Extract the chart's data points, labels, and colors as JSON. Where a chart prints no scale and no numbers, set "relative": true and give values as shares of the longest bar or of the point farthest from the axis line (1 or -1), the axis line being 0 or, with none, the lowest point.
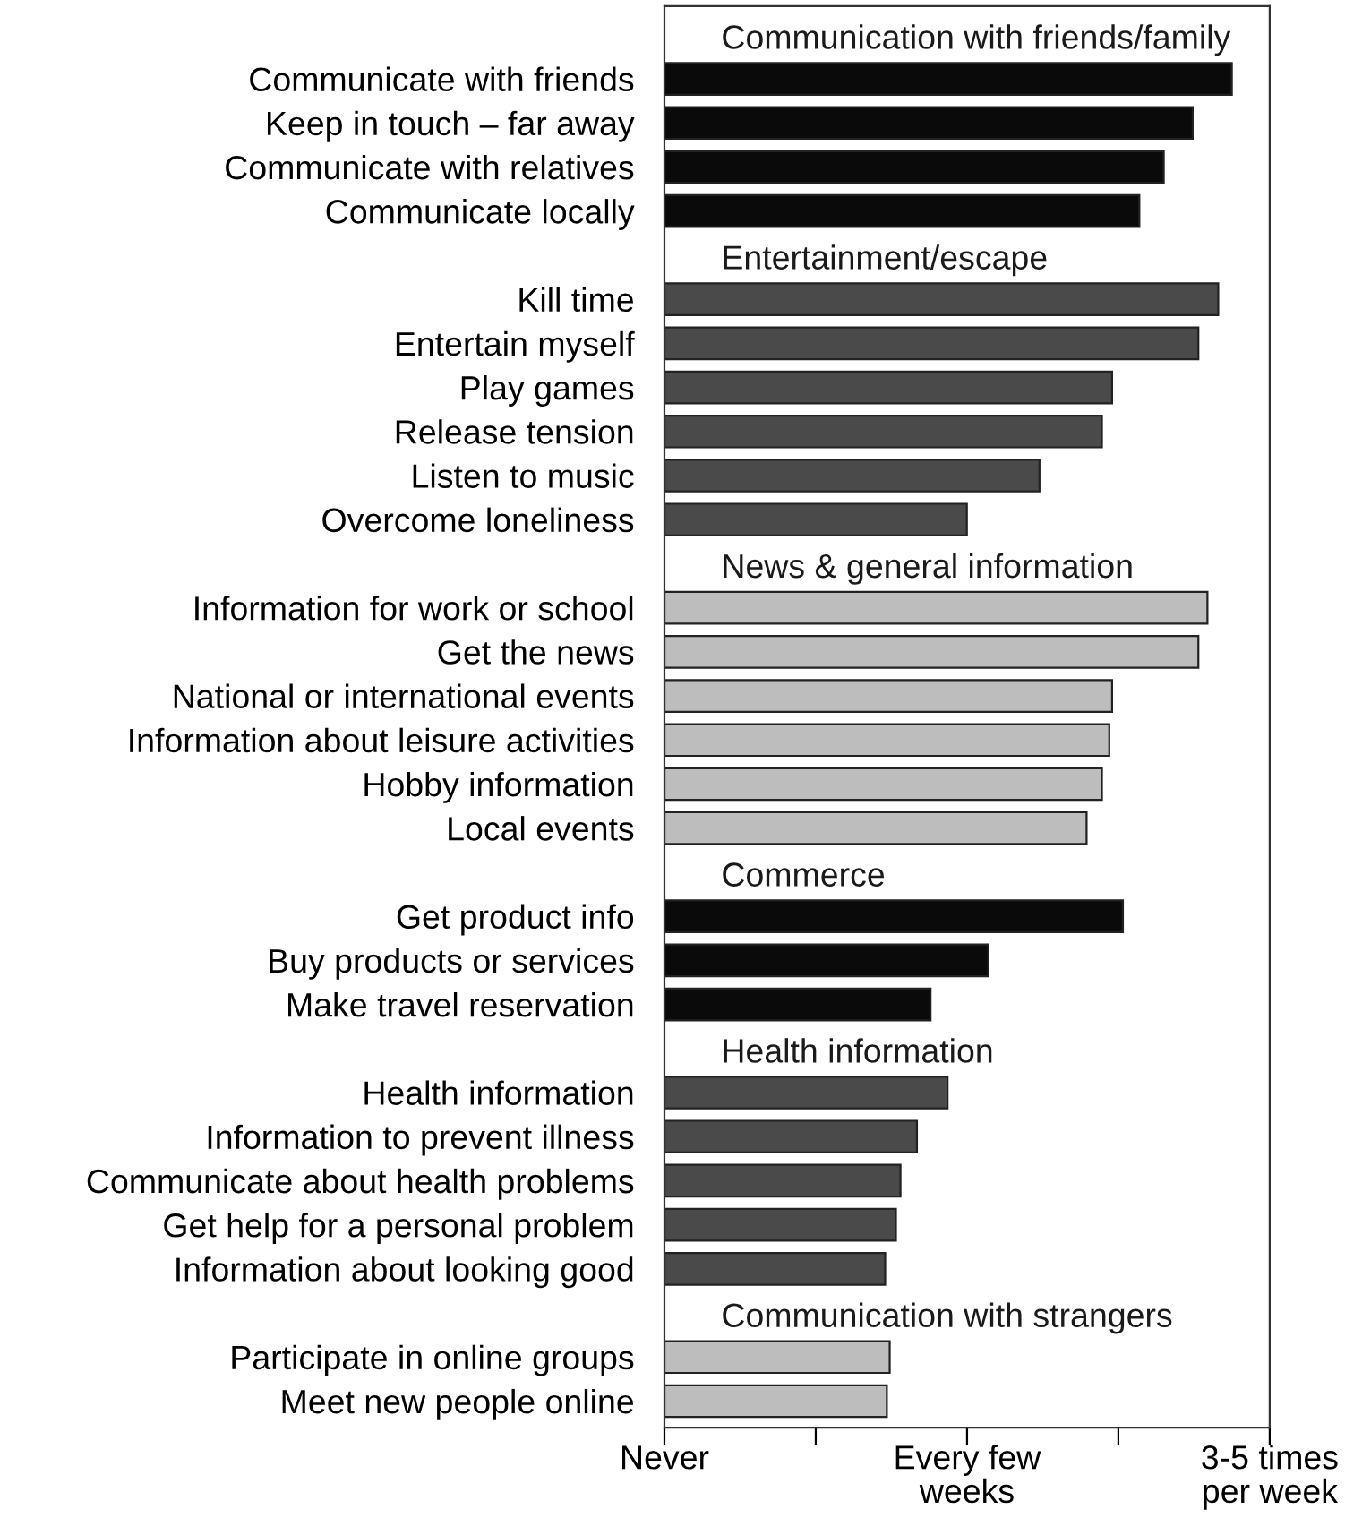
{
  "chart_data": {
    "type": "bar",
    "orientation": "horizontal",
    "categories": [
      "Communicate with friends",
      "Keep in touch – far away",
      "Communicate with relatives",
      "Communicate locally",
      "Kill time",
      "Entertain myself",
      "Play games",
      "Release tension",
      "Listen to music",
      "Overcome loneliness",
      "Information for work or school",
      "Get the news",
      "National or international events",
      "Information about leisure activities",
      "Hobby information",
      "Local events",
      "Get product info",
      "Buy products or services",
      "Make travel reservation",
      "Health information",
      "Information to prevent illness",
      "Communicate about health problems",
      "Get help for a personal problem",
      "Information about looking good",
      "Participate in online groups",
      "Meet new people online"
    ],
    "series": [
      {
        "name": "Communication with friends/family",
        "color": "#0a0a0a",
        "values": [
          1,
          0.931,
          0.88,
          0.837,
          null,
          null,
          null,
          null,
          null,
          null,
          null,
          null,
          null,
          null,
          null,
          null,
          null,
          null,
          null,
          null,
          null,
          null,
          null,
          null,
          null,
          null
        ]
      },
      {
        "name": "Entertainment/escape",
        "color": "#4a4a4a",
        "values": [
          null,
          null,
          null,
          null,
          0.976,
          0.941,
          0.789,
          0.771,
          0.661,
          0.533,
          null,
          null,
          null,
          null,
          null,
          null,
          null,
          null,
          null,
          null,
          null,
          null,
          null,
          null,
          null,
          null
        ]
      },
      {
        "name": "News & general information",
        "color": "#bdbdbd",
        "values": [
          null,
          null,
          null,
          null,
          null,
          null,
          null,
          null,
          null,
          null,
          0.957,
          0.941,
          0.789,
          0.784,
          0.771,
          0.744,
          null,
          null,
          null,
          null,
          null,
          null,
          null,
          null,
          null,
          null
        ]
      },
      {
        "name": "Commerce",
        "color": "#0a0a0a",
        "values": [
          null,
          null,
          null,
          null,
          null,
          null,
          null,
          null,
          null,
          null,
          null,
          null,
          null,
          null,
          null,
          null,
          0.808,
          0.571,
          0.469,
          null,
          null,
          null,
          null,
          null,
          null,
          null
        ]
      },
      {
        "name": "Health information",
        "color": "#4a4a4a",
        "values": [
          null,
          null,
          null,
          null,
          null,
          null,
          null,
          null,
          null,
          null,
          null,
          null,
          null,
          null,
          null,
          null,
          null,
          null,
          null,
          0.499,
          0.445,
          0.416,
          0.408,
          0.389,
          null,
          null
        ]
      },
      {
        "name": "Communication with strangers",
        "color": "#bdbdbd",
        "values": [
          null,
          null,
          null,
          null,
          null,
          null,
          null,
          null,
          null,
          null,
          null,
          null,
          null,
          null,
          null,
          null,
          null,
          null,
          null,
          null,
          null,
          null,
          null,
          null,
          0.397,
          0.392
        ]
      }
    ],
    "relative": true,
    "annotations": [
      "Never",
      "Every few\nweeks",
      "3-5 times\nper week"
    ],
    "grid": false,
    "legend": false
  }
}
